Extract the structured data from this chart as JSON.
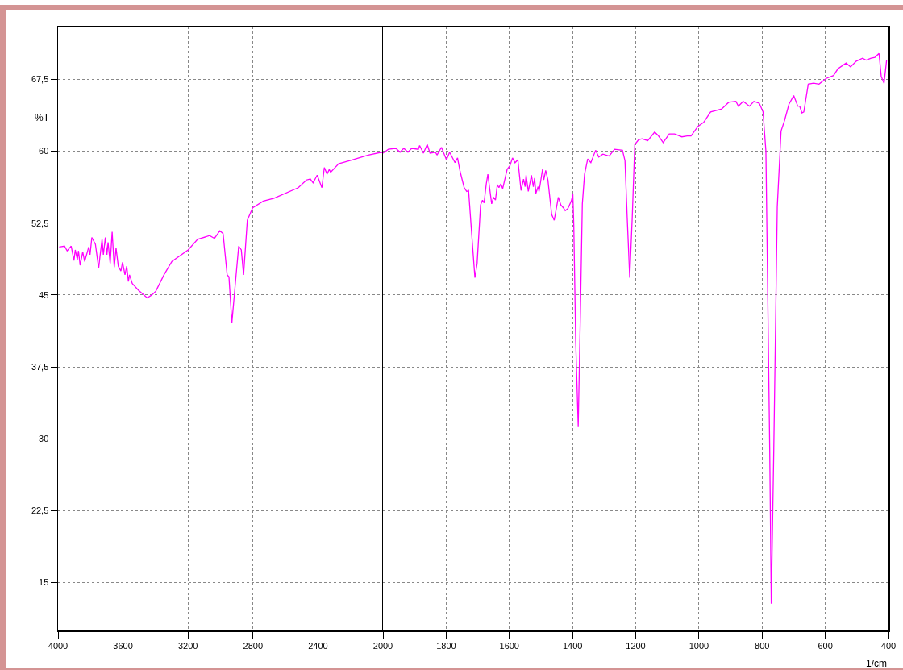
{
  "chart_data": [
    {
      "type": "line",
      "ylabel": "%T",
      "xlim": [
        4000,
        2000
      ],
      "ylim": [
        10,
        73
      ],
      "grid": true,
      "xticks": [
        4000,
        3600,
        3200,
        2800,
        2400,
        2000
      ],
      "yticks": [
        15,
        {
          "value": 22.5,
          "label": "22,5"
        },
        30,
        {
          "value": 37.5,
          "label": "37,5"
        },
        45,
        {
          "value": 52.5,
          "label": "52,5"
        },
        60,
        {
          "value": 67.5,
          "label": "67,5"
        }
      ],
      "series": [
        {
          "color": "#ff00ff",
          "x": [
            3993,
            3960,
            3944,
            3919,
            3902,
            3894,
            3881,
            3874,
            3864,
            3848,
            3836,
            3811,
            3803,
            3792,
            3770,
            3750,
            3742,
            3729,
            3721,
            3709,
            3699,
            3692,
            3679,
            3667,
            3654,
            3643,
            3629,
            3613,
            3603,
            3588,
            3577,
            3567,
            3560,
            3543,
            3505,
            3451,
            3423,
            3398,
            3348,
            3299,
            3199,
            3141,
            3067,
            3037,
            3004,
            2984,
            2959,
            2948,
            2930,
            2905,
            2888,
            2872,
            2858,
            2835,
            2802,
            2736,
            2670,
            2521,
            2471,
            2447,
            2430,
            2405,
            2376,
            2361,
            2344,
            2331,
            2322,
            2273,
            2190,
            2091,
            2008,
            2000
          ],
          "values": [
            50.0,
            50.1,
            49.6,
            50.1,
            48.6,
            49.7,
            48.7,
            49.6,
            48.1,
            49.5,
            48.5,
            50.0,
            49.2,
            51.0,
            50.3,
            47.8,
            49.0,
            50.8,
            49.2,
            51.0,
            49.2,
            50.5,
            48.3,
            51.6,
            47.9,
            49.9,
            48.0,
            47.5,
            48.4,
            47.1,
            48.0,
            46.4,
            47.1,
            46.2,
            45.5,
            44.7,
            45.0,
            45.4,
            47.1,
            48.5,
            49.7,
            50.8,
            51.2,
            50.9,
            51.7,
            51.4,
            47.1,
            46.9,
            42.1,
            46.9,
            50.1,
            49.7,
            47.1,
            52.8,
            54.1,
            54.8,
            55.1,
            56.2,
            57.0,
            57.1,
            56.7,
            57.5,
            56.2,
            58.3,
            57.6,
            58.1,
            57.8,
            58.7,
            59.1,
            59.6,
            59.9,
            59.8
          ]
        }
      ]
    },
    {
      "type": "line",
      "xlabel": "1/cm",
      "xlim": [
        2000,
        400
      ],
      "ylim": [
        10,
        73
      ],
      "grid": true,
      "tick_labels": "x",
      "xticks": [
        {
          "value": 2000,
          "label": null
        },
        1800,
        1600,
        1400,
        1200,
        1000,
        800,
        600,
        400
      ],
      "yticks": [
        15,
        22.5,
        30,
        37.5,
        45,
        52.5,
        60,
        67.5
      ],
      "series": [
        {
          "color": "#ff00ff",
          "x": [
            2000,
            1983,
            1959,
            1946,
            1934,
            1921,
            1909,
            1888,
            1884,
            1872,
            1860,
            1851,
            1834,
            1829,
            1815,
            1799,
            1789,
            1772,
            1764,
            1756,
            1743,
            1735,
            1729,
            1721,
            1709,
            1702,
            1691,
            1685,
            1680,
            1673,
            1668,
            1663,
            1656,
            1650,
            1644,
            1638,
            1633,
            1627,
            1621,
            1607,
            1598,
            1590,
            1582,
            1573,
            1563,
            1555,
            1550,
            1547,
            1540,
            1530,
            1524,
            1520,
            1516,
            1509,
            1506,
            1495,
            1491,
            1485,
            1478,
            1466,
            1458,
            1445,
            1437,
            1429,
            1423,
            1415,
            1404,
            1399,
            1396,
            1390,
            1382,
            1375,
            1369,
            1362,
            1352,
            1342,
            1327,
            1317,
            1304,
            1284,
            1267,
            1242,
            1234,
            1227,
            1219,
            1211,
            1203,
            1191,
            1180,
            1162,
            1140,
            1128,
            1113,
            1094,
            1077,
            1054,
            1037,
            1025,
            1003,
            985,
            963,
            928,
            906,
            883,
            875,
            860,
            840,
            826,
            809,
            797,
            788,
            782,
            776,
            771,
            763,
            752,
            740,
            729,
            715,
            700,
            687,
            681,
            674,
            668,
            654,
            637,
            620,
            597,
            574,
            560,
            534,
            520,
            502,
            482,
            471,
            455,
            443,
            430,
            423,
            414,
            406
          ],
          "values": [
            59.8,
            60.2,
            60.3,
            59.9,
            60.3,
            59.9,
            60.3,
            60.2,
            60.6,
            59.8,
            60.7,
            59.8,
            59.9,
            59.6,
            60.4,
            59.1,
            59.9,
            58.8,
            59.3,
            57.9,
            56.2,
            55.8,
            55.9,
            52.2,
            46.8,
            48.3,
            54.4,
            54.9,
            54.6,
            56.6,
            57.6,
            56.3,
            54.5,
            55.2,
            54.9,
            56.5,
            56.2,
            56.6,
            56.1,
            58.1,
            58.5,
            59.3,
            58.8,
            59.1,
            55.9,
            57.1,
            56.3,
            57.5,
            55.8,
            57.5,
            56.3,
            57.2,
            55.6,
            56.3,
            55.8,
            58.1,
            57.0,
            58.0,
            57.0,
            53.4,
            52.8,
            55.2,
            54.4,
            54.1,
            53.8,
            54.0,
            54.8,
            55.5,
            52.2,
            40.2,
            31.3,
            43.3,
            54.5,
            57.6,
            59.2,
            58.8,
            60.1,
            59.4,
            59.7,
            59.5,
            60.2,
            60.1,
            59.0,
            53.1,
            46.8,
            53.1,
            60.7,
            61.2,
            61.3,
            61.1,
            62.0,
            61.6,
            60.9,
            61.8,
            61.8,
            61.5,
            61.6,
            61.6,
            62.6,
            63.0,
            64.1,
            64.4,
            65.1,
            65.2,
            64.7,
            65.2,
            64.7,
            65.2,
            65.0,
            64.1,
            60.0,
            44.5,
            29.0,
            12.8,
            29.0,
            54.2,
            62.1,
            63.2,
            64.9,
            65.8,
            64.7,
            64.7,
            64.0,
            64.1,
            67.0,
            67.1,
            67.0,
            67.6,
            67.9,
            68.6,
            69.2,
            68.8,
            69.4,
            69.7,
            69.5,
            69.7,
            69.8,
            70.2,
            67.8,
            67.1,
            69.5
          ]
        }
      ]
    }
  ]
}
